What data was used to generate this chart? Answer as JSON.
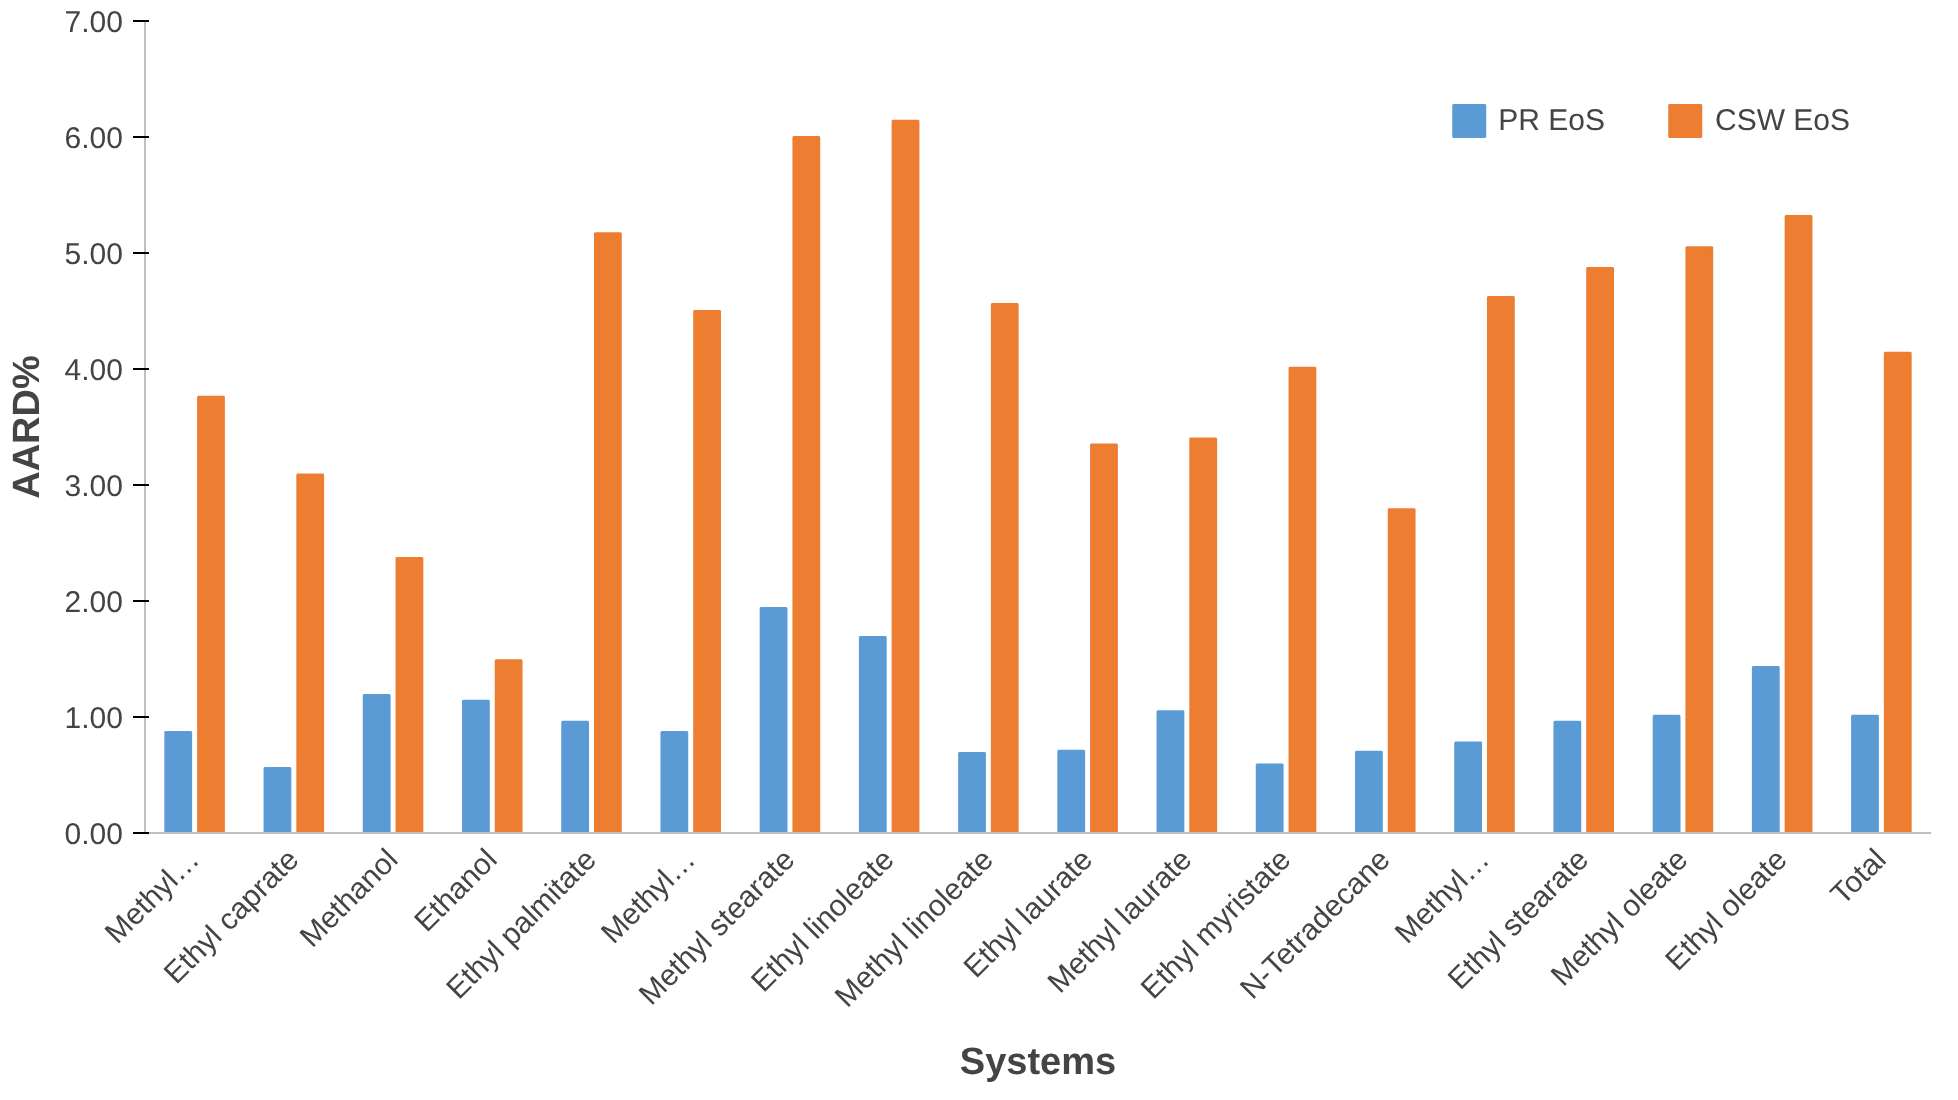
{
  "chart_data": {
    "type": "bar",
    "xlabel": "Systems",
    "ylabel": "AARD%",
    "categories": [
      "Methyl…",
      "Ethyl caprate",
      "Methanol",
      "Ethanol",
      "Ethyl palmitate",
      "Methyl…",
      "Methyl stearate",
      "Ethyl linoleate",
      "Methyl linoleate",
      "Ethyl laurate",
      "Methyl laurate",
      "Ethyl myristate",
      "N-Tetradecane",
      "Methyl…",
      "Ethyl stearate",
      "Methyl oleate",
      "Ethyl oleate",
      "Total"
    ],
    "series": [
      {
        "name": "PR EoS",
        "color": "#5b9bd5",
        "values": [
          0.87,
          0.56,
          1.19,
          1.14,
          0.96,
          0.87,
          1.94,
          1.69,
          0.69,
          0.71,
          1.05,
          0.59,
          0.7,
          0.78,
          0.96,
          1.01,
          1.43,
          1.01
        ]
      },
      {
        "name": "CSW EoS",
        "color": "#ed7d31",
        "values": [
          3.76,
          3.09,
          2.37,
          1.49,
          5.17,
          4.5,
          6.0,
          6.14,
          4.56,
          3.35,
          3.4,
          4.01,
          2.79,
          4.62,
          4.87,
          5.05,
          5.32,
          4.14
        ]
      }
    ],
    "ylim": [
      0,
      7
    ],
    "yticks": [
      {
        "value": 0,
        "label": "0.00"
      },
      {
        "value": 1,
        "label": "1.00"
      },
      {
        "value": 2,
        "label": "2.00"
      },
      {
        "value": 3,
        "label": "3.00"
      },
      {
        "value": 4,
        "label": "4.00"
      },
      {
        "value": 5,
        "label": "5.00"
      },
      {
        "value": 6,
        "label": "6.00"
      },
      {
        "value": 7,
        "label": "7.00"
      }
    ],
    "grid": false,
    "legend": "top right"
  }
}
